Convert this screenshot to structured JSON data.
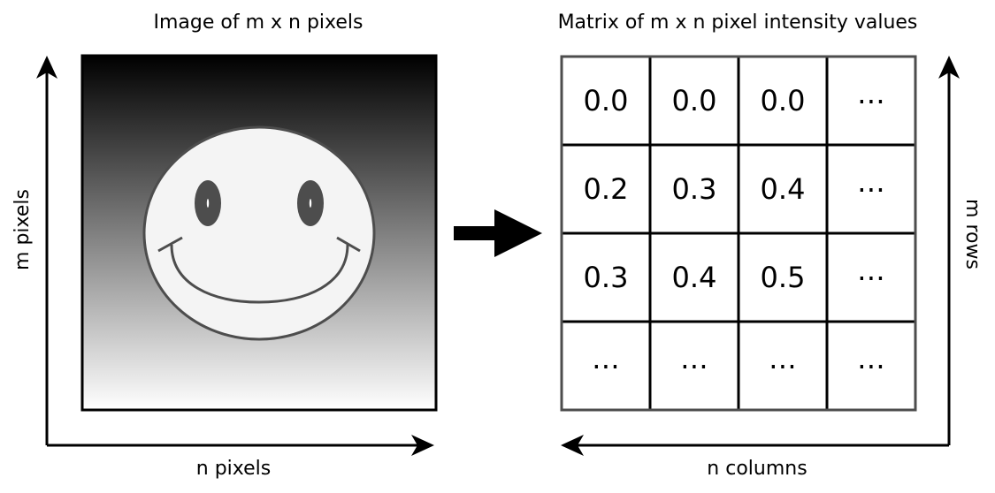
{
  "image_panel": {
    "title": "Image of m x n pixels",
    "x_axis_label": "n pixels",
    "y_axis_label": "m pixels",
    "gradient_top": "#000000",
    "gradient_bottom": "#ffffff",
    "face_fill": "#f4f4f4",
    "face_stroke": "#4d4d4d"
  },
  "matrix_panel": {
    "title": "Matrix of m x n pixel intensity values",
    "x_axis_label": "n columns",
    "y_axis_label": "m rows",
    "rows": [
      [
        "0.0",
        "0.0",
        "0.0",
        "⋯"
      ],
      [
        "0.2",
        "0.3",
        "0.4",
        "⋯"
      ],
      [
        "0.3",
        "0.4",
        "0.5",
        "⋯"
      ],
      [
        "⋯",
        "⋯",
        "⋯",
        "⋯"
      ]
    ]
  },
  "colors": {
    "line": "#000000",
    "matrix_border": "#4d4d4d"
  }
}
